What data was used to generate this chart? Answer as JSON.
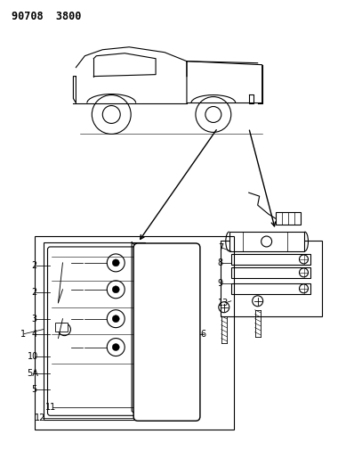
{
  "title": "90708 3800",
  "bg_color": "#ffffff",
  "line_color": "#000000",
  "title_fontsize": 8.5,
  "label_fontsize": 7.0,
  "fig_width": 3.98,
  "fig_height": 5.33,
  "dpi": 100
}
